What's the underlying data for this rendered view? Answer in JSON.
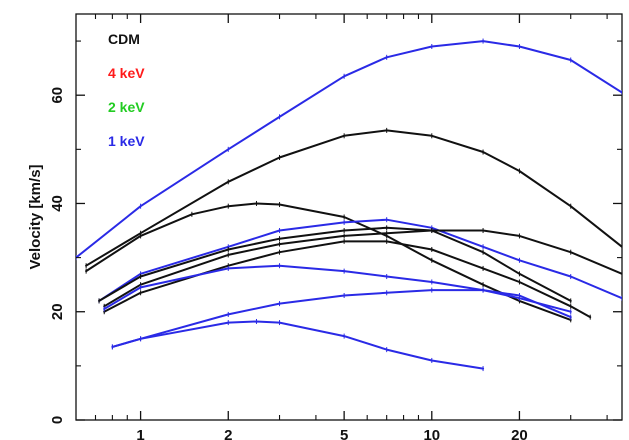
{
  "chart_data": {
    "type": "line",
    "title": "",
    "xlabel": "",
    "ylabel": "Velocity [km/s]",
    "x_scale": "log",
    "xlim": [
      0.6,
      45
    ],
    "ylim": [
      0,
      75
    ],
    "x_ticks": [
      1,
      2,
      5,
      10,
      20
    ],
    "x_tick_labels": [
      "1",
      "2",
      "5",
      "10",
      "20"
    ],
    "y_ticks": [
      0,
      20,
      40,
      60
    ],
    "y_tick_labels": [
      "0",
      "20",
      "40",
      "60"
    ],
    "grid": false,
    "legend_position": "top-left",
    "legend": [
      {
        "label": "CDM",
        "color": "#111111"
      },
      {
        "label": "4 keV",
        "color": "#ff1a1a"
      },
      {
        "label": "2 keV",
        "color": "#22cc22"
      },
      {
        "label": "1 keV",
        "color": "#2a2ae6"
      }
    ],
    "series": [
      {
        "color": "#2a2ae6",
        "x": [
          0.6,
          1,
          2,
          3,
          5,
          7,
          10,
          15,
          20,
          30,
          45
        ],
        "y": [
          30,
          39.5,
          50,
          56,
          63.5,
          67,
          69,
          70,
          69,
          66.5,
          60.5
        ]
      },
      {
        "color": "#111111",
        "x": [
          0.65,
          1,
          2,
          3,
          5,
          7,
          10,
          15,
          20,
          30,
          45
        ],
        "y": [
          28.5,
          34.5,
          44,
          48.5,
          52.5,
          53.5,
          52.5,
          49.5,
          46,
          39.5,
          32
        ]
      },
      {
        "color": "#111111",
        "x": [
          0.65,
          1,
          1.5,
          2,
          2.5,
          3,
          5,
          7,
          10,
          15,
          20,
          30
        ],
        "y": [
          27.5,
          34,
          38,
          39.5,
          40,
          39.8,
          37.5,
          34,
          29.5,
          25,
          22,
          18.5
        ]
      },
      {
        "color": "#2a2ae6",
        "x": [
          0.72,
          1,
          2,
          3,
          5,
          7,
          10,
          15,
          20,
          30,
          45
        ],
        "y": [
          22,
          27,
          32,
          35,
          36.5,
          37,
          35.5,
          32,
          29.5,
          26.5,
          22.5
        ]
      },
      {
        "color": "#111111",
        "x": [
          0.72,
          1,
          2,
          3,
          5,
          7,
          10,
          15,
          20,
          30
        ],
        "y": [
          22,
          26.5,
          31.5,
          33.5,
          35,
          35.5,
          35,
          31,
          27,
          22
        ]
      },
      {
        "color": "#111111",
        "x": [
          0.75,
          1,
          2,
          3,
          5,
          7,
          10,
          15,
          20,
          30,
          45
        ],
        "y": [
          21,
          25,
          30.5,
          32.5,
          34,
          34.5,
          35,
          35,
          34,
          31,
          27
        ]
      },
      {
        "color": "#111111",
        "x": [
          0.75,
          1,
          2,
          3,
          5,
          7,
          10,
          15,
          20,
          30,
          35
        ],
        "y": [
          20,
          23.5,
          28.5,
          31,
          33,
          33,
          31.5,
          28,
          25.5,
          21,
          19
        ]
      },
      {
        "color": "#2a2ae6",
        "x": [
          0.75,
          1,
          2,
          3,
          5,
          7,
          10,
          15,
          20,
          30
        ],
        "y": [
          20.5,
          24.5,
          28,
          28.5,
          27.5,
          26.5,
          25.5,
          24,
          22.5,
          20
        ]
      },
      {
        "color": "#2a2ae6",
        "x": [
          0.8,
          1,
          2,
          3,
          5,
          7,
          10,
          15,
          20,
          30
        ],
        "y": [
          13.5,
          15,
          19.5,
          21.5,
          23,
          23.5,
          24,
          24,
          23,
          19
        ]
      },
      {
        "color": "#2a2ae6",
        "x": [
          0.8,
          1,
          2,
          2.5,
          3,
          5,
          7,
          10,
          15
        ],
        "y": [
          13.5,
          15,
          18,
          18.2,
          18,
          15.5,
          13,
          11,
          9.5
        ]
      }
    ]
  }
}
